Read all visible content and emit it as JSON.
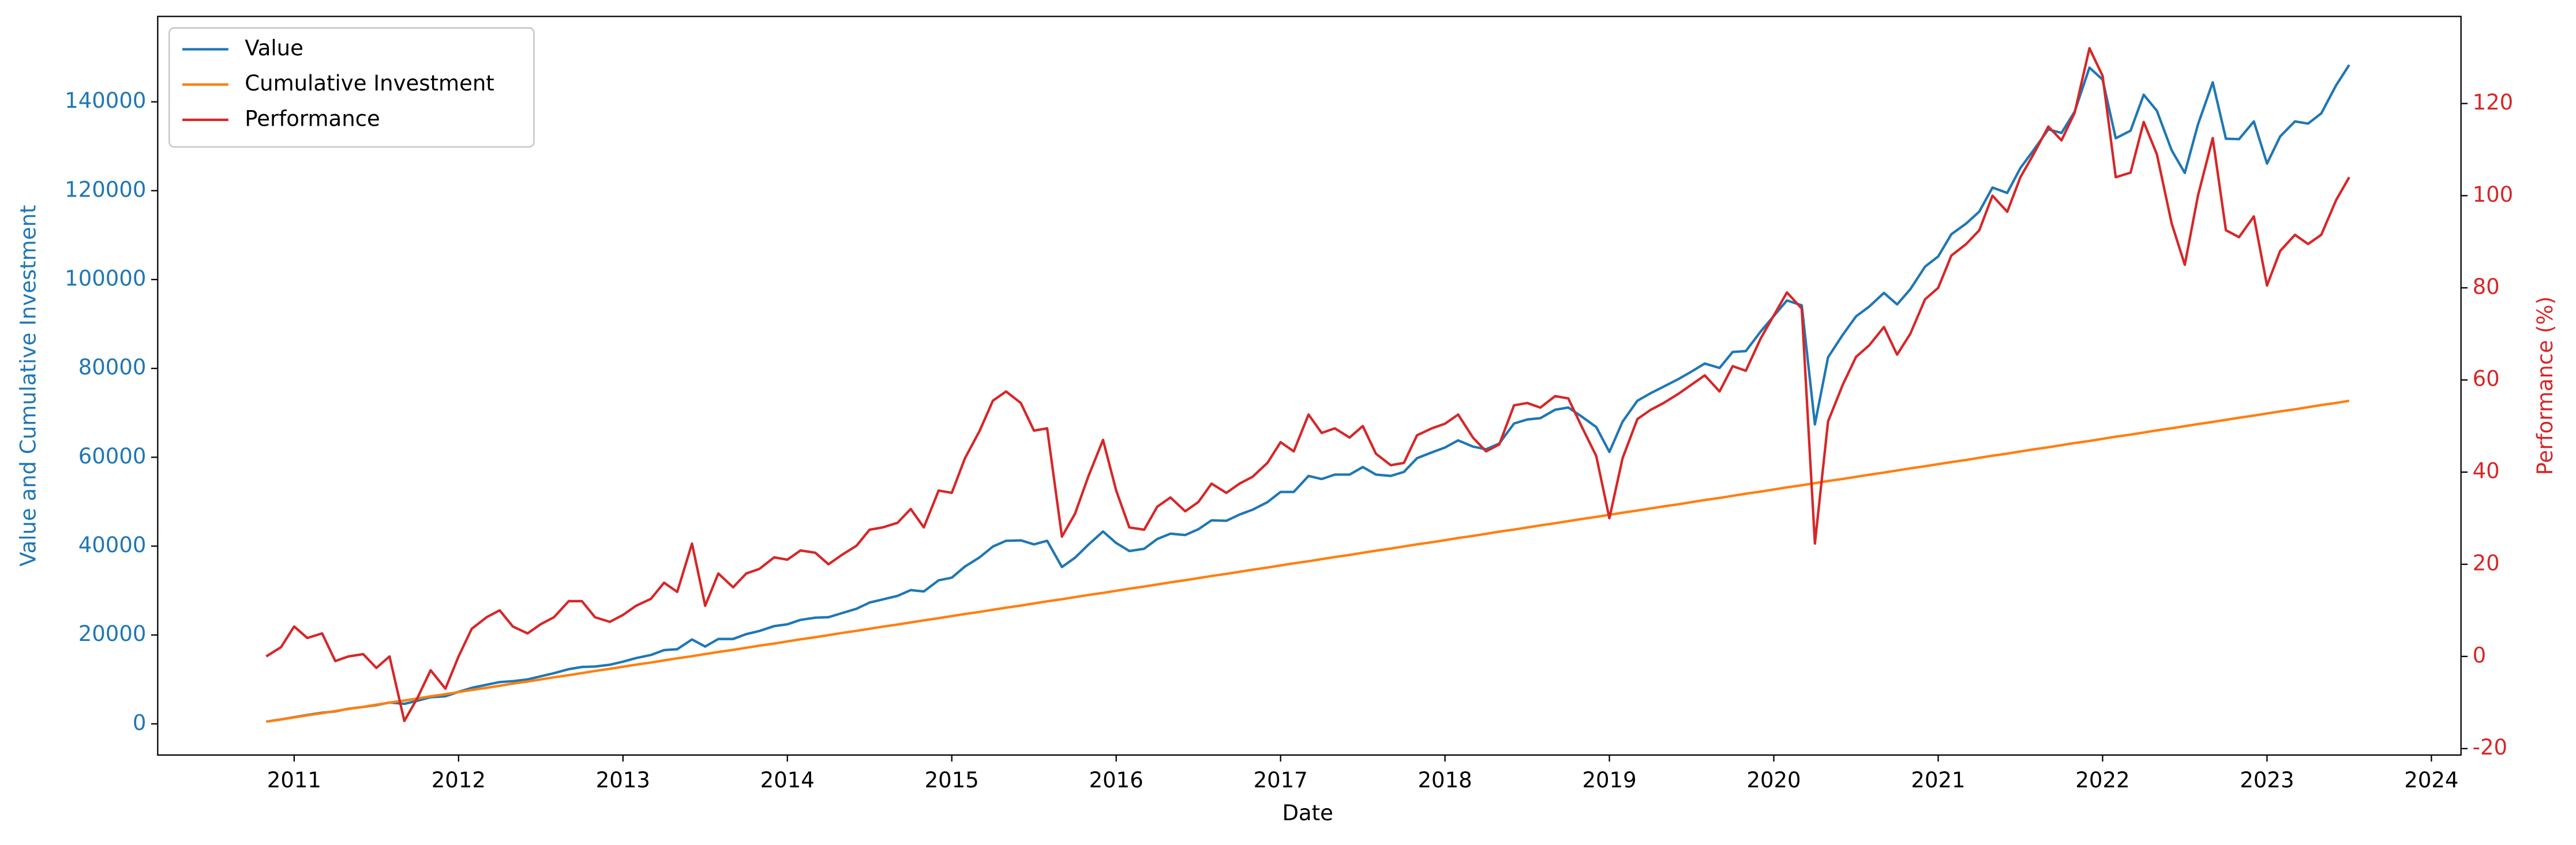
{
  "chart_data": {
    "type": "line",
    "xlabel": "Date",
    "ylabel": "Value and Cumulative Investment",
    "y2label": "Performance (%)",
    "legend": "upper left",
    "grid": false,
    "ylabel_color": "#1f77b4",
    "y2label_color": "#d62728",
    "x": [
      2010.83,
      2010.92,
      2011,
      2011.08,
      2011.17,
      2011.25,
      2011.33,
      2011.42,
      2011.5,
      2011.58,
      2011.67,
      2011.75,
      2011.83,
      2011.92,
      2012,
      2012.08,
      2012.17,
      2012.25,
      2012.33,
      2012.42,
      2012.5,
      2012.58,
      2012.67,
      2012.75,
      2012.83,
      2012.92,
      2013,
      2013.08,
      2013.17,
      2013.25,
      2013.33,
      2013.42,
      2013.5,
      2013.58,
      2013.67,
      2013.75,
      2013.83,
      2013.92,
      2014,
      2014.08,
      2014.17,
      2014.25,
      2014.33,
      2014.42,
      2014.5,
      2014.58,
      2014.67,
      2014.75,
      2014.83,
      2014.92,
      2015,
      2015.08,
      2015.17,
      2015.25,
      2015.33,
      2015.42,
      2015.5,
      2015.58,
      2015.67,
      2015.75,
      2015.83,
      2015.92,
      2016,
      2016.08,
      2016.17,
      2016.25,
      2016.33,
      2016.42,
      2016.5,
      2016.58,
      2016.67,
      2016.75,
      2016.83,
      2016.92,
      2017,
      2017.08,
      2017.17,
      2017.25,
      2017.33,
      2017.42,
      2017.5,
      2017.58,
      2017.67,
      2017.75,
      2017.83,
      2017.92,
      2018,
      2018.08,
      2018.17,
      2018.25,
      2018.33,
      2018.42,
      2018.5,
      2018.58,
      2018.67,
      2018.75,
      2018.83,
      2018.92,
      2019,
      2019.08,
      2019.17,
      2019.25,
      2019.33,
      2019.42,
      2019.5,
      2019.58,
      2019.67,
      2019.75,
      2019.83,
      2019.92,
      2020,
      2020.08,
      2020.17,
      2020.25,
      2020.33,
      2020.42,
      2020.5,
      2020.58,
      2020.67,
      2020.75,
      2020.83,
      2020.92,
      2021,
      2021.08,
      2021.17,
      2021.25,
      2021.33,
      2021.42,
      2021.5,
      2021.58,
      2021.67,
      2021.75,
      2021.83,
      2021.92,
      2022,
      2022.08,
      2022.17,
      2022.25,
      2022.33,
      2022.42,
      2022.5,
      2022.58,
      2022.67,
      2022.75,
      2022.83,
      2022.92,
      2023,
      2023.08,
      2023.17,
      2023.25,
      2023.33,
      2023.42,
      2023.5
    ],
    "series": [
      {
        "name": "Value",
        "color": "#1f77b4",
        "axis": "y",
        "values": [
          500,
          1000,
          1500,
          2000,
          2500,
          2800,
          3400,
          3800,
          4200,
          4800,
          4500,
          5200,
          6000,
          6200,
          7200,
          8100,
          8800,
          9400,
          9600,
          10000,
          10700,
          11400,
          12300,
          12800,
          12900,
          13300,
          14000,
          14800,
          15500,
          16600,
          16800,
          19000,
          17400,
          19100,
          19100,
          20200,
          20900,
          22000,
          22400,
          23400,
          23900,
          24000,
          24900,
          25900,
          27300,
          28000,
          28800,
          30100,
          29800,
          32300,
          32900,
          35400,
          37500,
          39900,
          41200,
          41300,
          40400,
          41200,
          35300,
          37400,
          40300,
          43300,
          40700,
          38900,
          39400,
          41600,
          42800,
          42500,
          43800,
          45800,
          45700,
          47100,
          48200,
          49900,
          52200,
          52200,
          55800,
          55100,
          56100,
          56100,
          57800,
          56100,
          55800,
          56700,
          59800,
          61100,
          62200,
          63800,
          62400,
          61800,
          63100,
          67600,
          68500,
          68800,
          70700,
          71200,
          69200,
          66800,
          61200,
          68000,
          72700,
          74400,
          75900,
          77600,
          79300,
          81100,
          80100,
          83700,
          83900,
          88300,
          91800,
          95300,
          94200,
          67400,
          82500,
          87600,
          91700,
          93900,
          97000,
          94400,
          97800,
          102900,
          105200,
          110200,
          112600,
          115300,
          120700,
          119500,
          125100,
          129100,
          133800,
          133000,
          137800,
          147700,
          145000,
          131800,
          133500,
          141600,
          138000,
          129100,
          124000,
          134900,
          144400,
          131700,
          131600,
          135600,
          126100,
          132200,
          135600,
          135100,
          137400,
          143700,
          148300
        ]
      },
      {
        "name": "Cumulative Investment",
        "color": "#ff7f0e",
        "axis": "y",
        "values": [
          500,
          975,
          1450,
          1925,
          2400,
          2875,
          3350,
          3825,
          4300,
          4775,
          5250,
          5725,
          6200,
          6675,
          7150,
          7625,
          8100,
          8575,
          9050,
          9525,
          10000,
          10475,
          10950,
          11425,
          11900,
          12375,
          12850,
          13325,
          13800,
          14275,
          14750,
          15225,
          15700,
          16175,
          16650,
          17125,
          17600,
          18075,
          18550,
          19025,
          19500,
          19975,
          20450,
          20925,
          21400,
          21875,
          22350,
          22825,
          23300,
          23775,
          24250,
          24725,
          25200,
          25675,
          26150,
          26625,
          27100,
          27575,
          28050,
          28525,
          29000,
          29475,
          29950,
          30425,
          30900,
          31375,
          31850,
          32325,
          32800,
          33275,
          33750,
          34225,
          34700,
          35175,
          35650,
          36125,
          36600,
          37075,
          37550,
          38025,
          38500,
          38975,
          39450,
          39925,
          40400,
          40875,
          41350,
          41825,
          42300,
          42775,
          43250,
          43725,
          44200,
          44675,
          45150,
          45625,
          46100,
          46575,
          47050,
          47525,
          48000,
          48475,
          48950,
          49425,
          49900,
          50375,
          50850,
          51325,
          51800,
          52275,
          52750,
          53225,
          53700,
          54175,
          54650,
          55125,
          55600,
          56075,
          56550,
          57025,
          57500,
          57975,
          58450,
          58925,
          59400,
          59875,
          60350,
          60825,
          61300,
          61775,
          62250,
          62725,
          63200,
          63675,
          64150,
          64625,
          65100,
          65575,
          66050,
          66525,
          67000,
          67475,
          67950,
          68425,
          68900,
          69375,
          69850,
          70325,
          70800,
          71275,
          71750,
          72225,
          72700
        ]
      },
      {
        "name": "Performance",
        "color": "#d62728",
        "axis": "y2",
        "values": [
          0,
          2,
          6.5,
          4,
          5,
          -1,
          0,
          0.5,
          -2.5,
          0,
          -14,
          -9,
          -3,
          -7,
          0,
          6,
          8.5,
          10,
          6.5,
          5,
          7,
          8.5,
          12,
          12,
          8.5,
          7.5,
          9,
          11,
          12.5,
          16,
          14,
          24.5,
          11,
          18,
          15,
          18,
          19,
          21.5,
          21,
          23,
          22.5,
          20,
          22,
          24,
          27.5,
          28,
          29,
          32,
          28,
          36,
          35.5,
          43,
          49,
          55.5,
          57.5,
          55,
          49,
          49.5,
          26,
          31,
          39,
          47,
          36,
          28,
          27.5,
          32.5,
          34.5,
          31.5,
          33.5,
          37.5,
          35.5,
          37.5,
          39,
          42,
          46.5,
          44.5,
          52.5,
          48.5,
          49.5,
          47.5,
          50,
          44,
          41.5,
          42,
          48,
          49.5,
          50.5,
          52.5,
          47.5,
          44.5,
          46,
          54.5,
          55,
          54,
          56.5,
          56,
          50,
          43.5,
          30,
          43,
          51.5,
          53.5,
          55,
          57,
          59,
          61,
          57.5,
          63,
          62,
          69,
          74,
          79,
          75.5,
          24.5,
          51,
          59,
          65,
          67.5,
          71.5,
          65.5,
          70,
          77.5,
          80,
          87,
          89.5,
          92.5,
          100,
          96.5,
          104,
          109,
          115,
          112,
          118,
          132,
          126,
          104,
          105,
          116,
          109,
          94,
          85,
          100,
          112.5,
          92.5,
          91,
          95.5,
          80.5,
          88,
          91.5,
          89.5,
          91.5,
          99,
          104
        ]
      }
    ],
    "xlim": [
      2010.17,
      2024.18
    ],
    "xticks": [
      2011,
      2012,
      2013,
      2014,
      2015,
      2016,
      2017,
      2018,
      2019,
      2020,
      2021,
      2022,
      2023,
      2024
    ],
    "ylim": [
      -7020,
      159220
    ],
    "yticks": [
      0,
      20000,
      40000,
      60000,
      80000,
      100000,
      120000,
      140000
    ],
    "y2lim": [
      -21.4,
      138.9
    ],
    "y2ticks": [
      -20,
      0,
      20,
      40,
      60,
      80,
      100,
      120
    ]
  }
}
